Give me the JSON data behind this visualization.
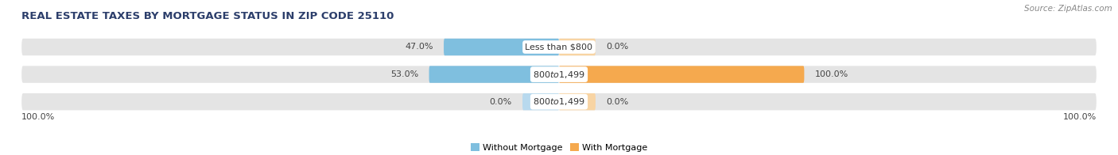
{
  "title": "REAL ESTATE TAXES BY MORTGAGE STATUS IN ZIP CODE 25110",
  "source": "Source: ZipAtlas.com",
  "rows": [
    {
      "label": "Less than $800",
      "without_mortgage": 47.0,
      "with_mortgage": 0.0
    },
    {
      "label": "$800 to $1,499",
      "without_mortgage": 53.0,
      "with_mortgage": 100.0
    },
    {
      "label": "$800 to $1,499",
      "without_mortgage": 0.0,
      "with_mortgage": 0.0
    }
  ],
  "color_without": "#7fbfdf",
  "color_with": "#f5a94e",
  "color_without_light": "#b8d9ee",
  "color_with_light": "#f8d4a3",
  "bar_bg": "#e4e4e4",
  "bar_height": 0.62,
  "bar_sep": 0.12,
  "x_left_label": "100.0%",
  "x_right_label": "100.0%",
  "legend_without": "Without Mortgage",
  "legend_with": "With Mortgage",
  "title_fontsize": 9.5,
  "label_fontsize": 8,
  "pct_fontsize": 8,
  "source_fontsize": 7.5,
  "zero_bar_width": 7,
  "xlim_left": -105,
  "xlim_right": 105
}
